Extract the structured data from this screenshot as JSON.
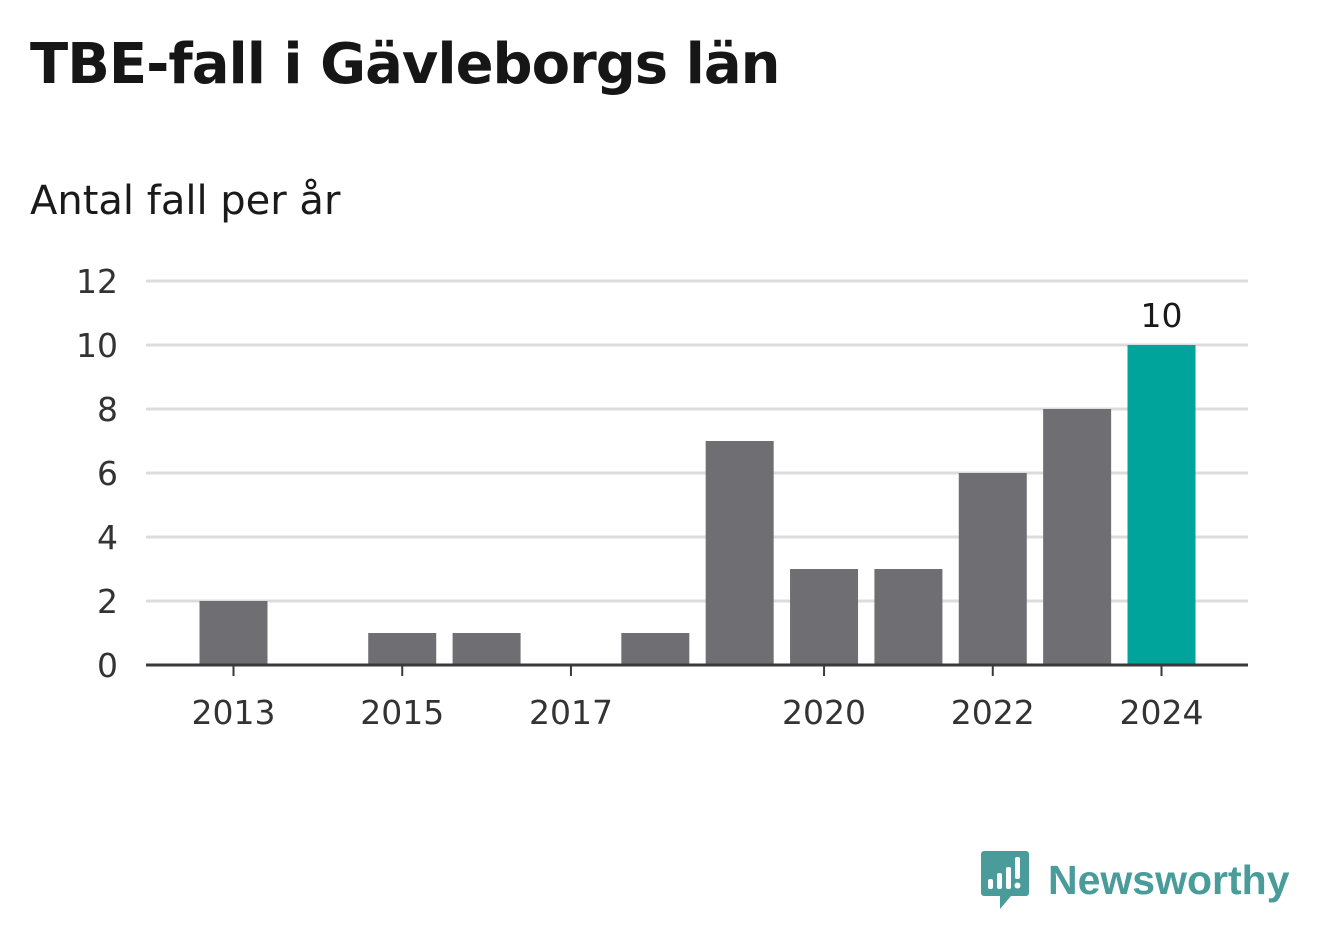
{
  "title": "TBE-fall i Gävleborgs län",
  "subtitle": "Antal fall per år",
  "brand": {
    "name": "Newsworthy",
    "icon": "newsworthy-logo-icon",
    "color": "#4a9c9b"
  },
  "colors": {
    "bar": "#6f6e73",
    "highlight": "#00a49a",
    "grid": "#dcdcdc",
    "axis": "#3a3a3a"
  },
  "chart_data": {
    "type": "bar",
    "categories": [
      "2013",
      "2014",
      "2015",
      "2016",
      "2017",
      "2018",
      "2019",
      "2020",
      "2021",
      "2022",
      "2023",
      "2024"
    ],
    "values": [
      2,
      0,
      1,
      1,
      0,
      1,
      7,
      3,
      3,
      6,
      8,
      10
    ],
    "x_tick_labels": [
      "2013",
      "2015",
      "2017",
      "2020",
      "2022",
      "2024"
    ],
    "y_ticks": [
      0,
      2,
      4,
      6,
      8,
      10,
      12
    ],
    "ylim": [
      0,
      12
    ],
    "highlight_category": "2024",
    "data_labels": [
      {
        "category": "2024",
        "text": "10"
      }
    ],
    "title": "TBE-fall i Gävleborgs län",
    "ylabel": "Antal fall per år",
    "xlabel": "",
    "grid": true,
    "legend": "none"
  }
}
